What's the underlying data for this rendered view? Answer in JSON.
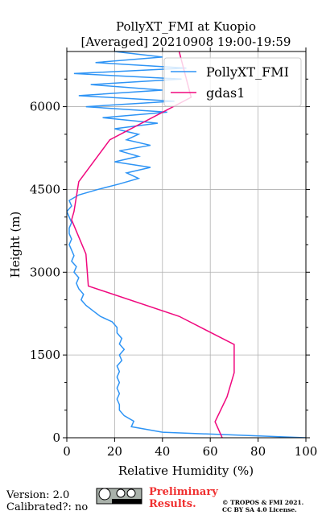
{
  "chart_data": {
    "type": "line",
    "title": [
      "PollyXT_FMI at Kuopio",
      "[Averaged] 20210908 19:00-19:59"
    ],
    "x_label": "Relative Humidity (%)",
    "y_label": "Height (m)",
    "xlim": [
      0,
      100
    ],
    "xticks": [
      0,
      20,
      40,
      60,
      80,
      100
    ],
    "ylim": [
      0,
      7000
    ],
    "yticks": [
      0,
      1500,
      3000,
      4500,
      6000
    ],
    "yminorticks": [
      500,
      1000,
      2000,
      2500,
      3500,
      4000,
      5000,
      5500,
      6500
    ],
    "grid": true,
    "legend": "upper right",
    "series": [
      {
        "name": "PollyXT_FMI",
        "color": "#2e94f5",
        "x": [
          100,
          40,
          27,
          28,
          24,
          22,
          22,
          21,
          22,
          21,
          22,
          21,
          22,
          21,
          23,
          22,
          24,
          22,
          23,
          21,
          21,
          19,
          14,
          11,
          8,
          6,
          7,
          5,
          4,
          5,
          3,
          4,
          2,
          3,
          2,
          1,
          2,
          1,
          1,
          2,
          1,
          0,
          2,
          1,
          5,
          13,
          22,
          30,
          25,
          35,
          20,
          30,
          22,
          35,
          25,
          30,
          20,
          38,
          15,
          42,
          8,
          45,
          5,
          40,
          10,
          48,
          3,
          50,
          12,
          40,
          20
        ],
        "values": [
          0,
          100,
          200,
          300,
          400,
          500,
          600,
          700,
          800,
          900,
          1000,
          1100,
          1200,
          1300,
          1400,
          1500,
          1600,
          1700,
          1800,
          1900,
          2000,
          2100,
          2200,
          2300,
          2400,
          2500,
          2600,
          2700,
          2800,
          2900,
          3000,
          3100,
          3200,
          3300,
          3400,
          3500,
          3600,
          3700,
          3800,
          3900,
          4000,
          4100,
          4200,
          4300,
          4400,
          4500,
          4600,
          4700,
          4800,
          4900,
          5000,
          5100,
          5200,
          5300,
          5400,
          5500,
          5600,
          5700,
          5800,
          5900,
          6000,
          6100,
          6200,
          6300,
          6400,
          6500,
          6600,
          6700,
          6800,
          6900,
          7000
        ]
      },
      {
        "name": "gdas1",
        "color": "#f0087e",
        "x": [
          65,
          62,
          67,
          70,
          70,
          47,
          9,
          8,
          2,
          3,
          5,
          18,
          52,
          47
        ],
        "values": [
          0,
          290,
          740,
          1180,
          1690,
          2200,
          2750,
          3330,
          3950,
          4100,
          4640,
          5400,
          6170,
          7000
        ]
      }
    ]
  },
  "footer": {
    "version": "Version: 2.0",
    "calibrated": "Calibrated?: no",
    "preliminary": [
      "Preliminary",
      "Results."
    ],
    "copyright": [
      "© TROPOS & FMI 2021.",
      "CC BY SA 4.0 License."
    ]
  }
}
